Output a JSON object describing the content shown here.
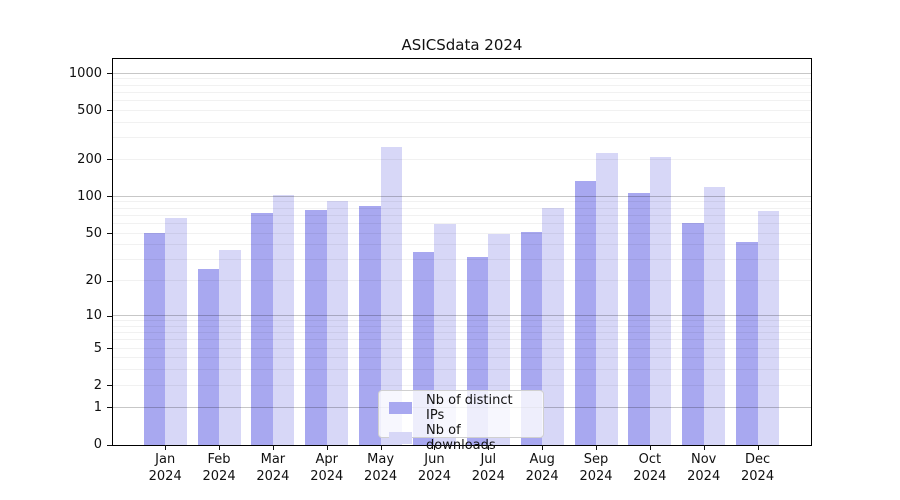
{
  "title": "ASICSdata 2024",
  "chart_data": {
    "type": "bar",
    "title": "ASICSdata 2024",
    "categories": [
      "Jan",
      "Feb",
      "Mar",
      "Apr",
      "May",
      "Jun",
      "Jul",
      "Aug",
      "Sep",
      "Oct",
      "Nov",
      "Dec"
    ],
    "year": "2024",
    "series": [
      {
        "name": "Nb of distinct IPs",
        "color": "#a8a8f0",
        "values": [
          50,
          25,
          73,
          77,
          84,
          35,
          32,
          51,
          133,
          106,
          61,
          42
        ]
      },
      {
        "name": "Nb of downloads",
        "color": "#d7d7f7",
        "values": [
          67,
          36,
          103,
          92,
          250,
          59,
          49,
          80,
          225,
          211,
          120,
          76
        ]
      }
    ],
    "y_axis": {
      "scale": "log1p",
      "ticks": [
        0,
        1,
        2,
        5,
        10,
        20,
        50,
        100,
        200,
        500,
        1000
      ]
    },
    "x_axis": {
      "label_format": "month over year, two lines"
    },
    "grid": true,
    "legend": {
      "position": "bottom-center"
    }
  }
}
